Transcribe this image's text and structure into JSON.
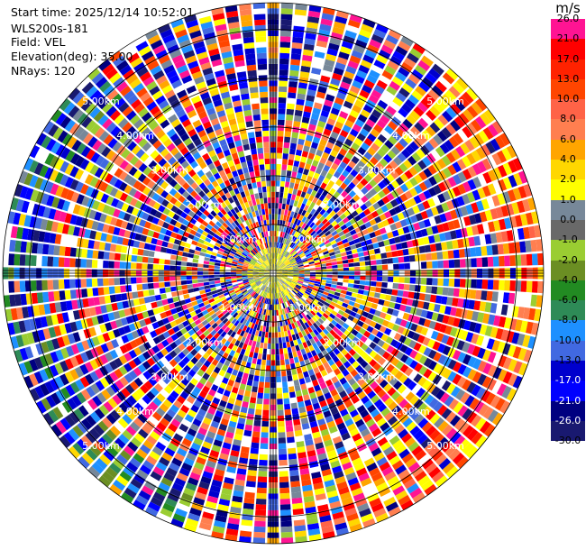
{
  "header": {
    "start_time": "Start time: 2025/12/14 10:52:01",
    "station": "WLS200s-181",
    "field": "Field: VEL",
    "elevation": "Elevation(deg): 35.00",
    "nrays": "NRays: 120"
  },
  "chart_data": {
    "type": "heatmap",
    "projection": "polar-ppi",
    "field": "VEL",
    "units": "m/s",
    "nrays": 120,
    "elevation_deg": 35.0,
    "range_rings_km": [
      1.0,
      2.0,
      3.0,
      4.0,
      5.0
    ],
    "ring_labels": [
      "1.00km",
      "2.00km",
      "3.00km",
      "4.00km",
      "5.00km"
    ],
    "colorbar": {
      "unit_label": "m/s",
      "levels": [
        {
          "label": "26.0",
          "color": "#ff1493"
        },
        {
          "label": "21.0",
          "color": "#ff0000"
        },
        {
          "label": "17.0",
          "color": "#ff2200"
        },
        {
          "label": "13.0",
          "color": "#ff4500"
        },
        {
          "label": "10.0",
          "color": "#ff6347"
        },
        {
          "label": "8.0",
          "color": "#ff7f50"
        },
        {
          "label": "6.0",
          "color": "#ffa500"
        },
        {
          "label": "4.0",
          "color": "#ffd700"
        },
        {
          "label": "2.0",
          "color": "#ffff00"
        },
        {
          "label": "1.0",
          "color": "#778899"
        },
        {
          "label": "0.0",
          "color": "#696969"
        },
        {
          "label": "-1.0",
          "color": "#9acd32"
        },
        {
          "label": "-2.0",
          "color": "#6b8e23"
        },
        {
          "label": "-4.0",
          "color": "#228b22"
        },
        {
          "label": "-6.0",
          "color": "#2e8b57"
        },
        {
          "label": "-8.0",
          "color": "#1e90ff"
        },
        {
          "label": "-10.0",
          "color": "#4169e1"
        },
        {
          "label": "-13.0",
          "color": "#0000cd"
        },
        {
          "label": "-17.0",
          "color": "#0000ff"
        },
        {
          "label": "-21.0",
          "color": "#000080"
        },
        {
          "label": "-26.0",
          "color": "#191970"
        },
        {
          "label": "-30.0",
          "color": "#ffffff"
        }
      ]
    }
  }
}
